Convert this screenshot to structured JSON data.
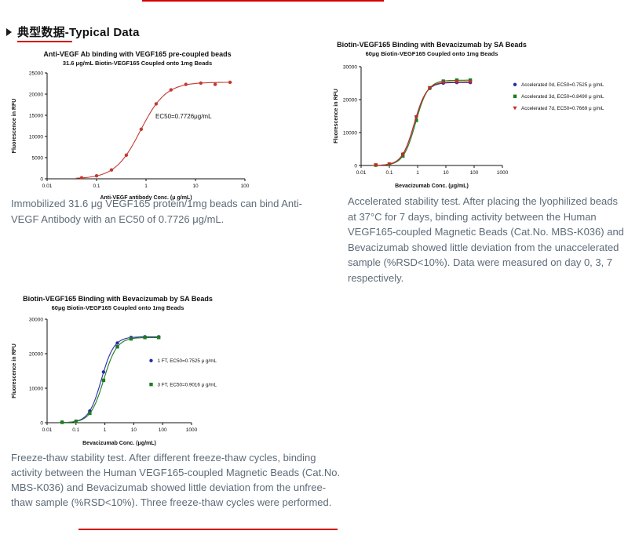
{
  "accent_color": "#d40000",
  "icons": {
    "header_bullet": "right-triangle-icon"
  },
  "header": {
    "title": "典型数据-Typical Data"
  },
  "captions": {
    "chart1": "Immobilized 31.6 μg VEGF165 protein/1mg beads can bind Anti-VEGF Antibody with an EC50 of 0.7726 μg/mL.",
    "chart2": "Accelerated stability test. After placing the lyophilized beads at 37°C for 7 days, binding activity between the Human VEGF165-coupled Magnetic Beads (Cat.No. MBS-K036) and Bevacizumab showed little deviation from the unaccelerated sample (%RSD<10%). Data were measured on day 0, 3, 7 respectively.",
    "chart3": "Freeze-thaw stability test. After different freeze-thaw cycles, binding activity between the Human VEGF165-coupled Magnetic Beads (Cat.No. MBS-K036) and Bevacizumab showed little deviation from the unfree-thaw sample (%RSD<10%). Three freeze-thaw cycles were performed."
  },
  "chart_data": [
    {
      "type": "scatter",
      "title": "Anti-VEGF Ab binding with VEGF165 pre-coupled beads",
      "subtitle": "31.6 μg/mL Biotin-VEGF165 Coupled onto 1mg Beads",
      "xlabel": "Anti-VEGF antibody Conc. (μ g/mL)",
      "ylabel": "Fluorescence in RFU",
      "x_scale": "log",
      "x_ticks": [
        0.01,
        0.1,
        1,
        10,
        100
      ],
      "y_ticks": [
        0,
        5000,
        10000,
        15000,
        20000,
        25000
      ],
      "xlim": [
        0.01,
        100
      ],
      "ylim": [
        0,
        25000
      ],
      "grid": false,
      "annotation": "EC50=0.7726μg/mL",
      "series": [
        {
          "name": "Anti-VEGF Ab",
          "color": "#c23a32",
          "marker": "circle",
          "ec50": 0.7726,
          "top": 22800,
          "hill": 1.7,
          "points": [
            [
              0.05,
              250
            ],
            [
              0.1,
              700
            ],
            [
              0.2,
              2100
            ],
            [
              0.4,
              5600
            ],
            [
              0.8,
              11700
            ],
            [
              1.6,
              17700
            ],
            [
              3.2,
              21000
            ],
            [
              6.4,
              22300
            ],
            [
              12.8,
              22600
            ],
            [
              25,
              22300
            ],
            [
              50,
              22800
            ]
          ]
        }
      ]
    },
    {
      "type": "scatter",
      "title": "Biotin-VEGF165 Binding with Bevacizumab by SA Beads",
      "subtitle": "60μg Biotin-VEGF165 Coupled onto 1mg Beads",
      "xlabel": "Bevacizumab Conc. (μg/mL)",
      "ylabel": "Fluorescence in RFU",
      "x_scale": "log",
      "x_ticks": [
        0.01,
        0.1,
        1,
        10,
        100,
        1000
      ],
      "y_ticks": [
        0,
        10000,
        20000,
        30000
      ],
      "xlim": [
        0.01,
        1000
      ],
      "ylim": [
        0,
        30000
      ],
      "grid": false,
      "legend_position": "right",
      "series": [
        {
          "name": "Accelerated 0d,  EC50=0.7525 μ g/mL",
          "color": "#2b2ba8",
          "marker": "circle",
          "ec50": 0.7525,
          "top": 25200,
          "hill": 2.0,
          "points": [
            [
              0.033,
              150
            ],
            [
              0.1,
              440
            ],
            [
              0.3,
              3460
            ],
            [
              0.9,
              14800
            ],
            [
              2.7,
              23400
            ],
            [
              8.1,
              25000
            ],
            [
              24.3,
              25200
            ],
            [
              73,
              25200
            ]
          ]
        },
        {
          "name": "Accelerated 3d,  EC50=0.8490 μ g/mL",
          "color": "#1e7d1e",
          "marker": "square",
          "ec50": 0.849,
          "top": 25900,
          "hill": 2.0,
          "points": [
            [
              0.033,
              130
            ],
            [
              0.1,
              360
            ],
            [
              0.3,
              2870
            ],
            [
              0.9,
              13700
            ],
            [
              2.7,
              23600
            ],
            [
              8.1,
              25600
            ],
            [
              24.3,
              25900
            ],
            [
              73,
              25900
            ]
          ]
        },
        {
          "name": "Accelerated 7d,  EC50=0.7669 μ g/mL",
          "color": "#cc2a1f",
          "marker": "triangle",
          "ec50": 0.7669,
          "top": 25400,
          "hill": 2.0,
          "points": [
            [
              0.033,
              140
            ],
            [
              0.1,
              430
            ],
            [
              0.3,
              3370
            ],
            [
              0.9,
              14700
            ],
            [
              2.7,
              23500
            ],
            [
              8.1,
              25200
            ],
            [
              24.3,
              25400
            ],
            [
              73,
              25400
            ]
          ]
        }
      ]
    },
    {
      "type": "scatter",
      "title": "Biotin-VEGF165 Binding with Bevacizumab by SA Beads",
      "subtitle": "60μg Biotin-VEGF165 Coupled onto 1mg Beads",
      "xlabel": "Bevacizumab Conc. (μg/mL)",
      "ylabel": "Fluorescence in RFU",
      "x_scale": "log",
      "x_ticks": [
        0.01,
        0.1,
        1,
        10,
        100,
        1000
      ],
      "y_ticks": [
        0,
        10000,
        20000,
        30000
      ],
      "xlim": [
        0.01,
        1000
      ],
      "ylim": [
        0,
        30000
      ],
      "grid": false,
      "legend_position": "inside-right",
      "series": [
        {
          "name": "1 FT,  EC50=0.7525 μ g/mL",
          "color": "#2b2ba8",
          "marker": "circle",
          "ec50": 0.7525,
          "top": 24900,
          "hill": 2.0,
          "points": [
            [
              0.033,
              150
            ],
            [
              0.1,
              430
            ],
            [
              0.3,
              3420
            ],
            [
              0.9,
              14700
            ],
            [
              2.7,
              23100
            ],
            [
              8.1,
              24700
            ],
            [
              24.3,
              24900
            ],
            [
              73,
              24900
            ]
          ]
        },
        {
          "name": "3 FT,  EC50=0.9016 μ g/mL",
          "color": "#1e7d1e",
          "marker": "square",
          "ec50": 0.9016,
          "top": 24700,
          "hill": 1.9,
          "points": [
            [
              0.033,
              120
            ],
            [
              0.1,
              370
            ],
            [
              0.3,
              2720
            ],
            [
              0.9,
              12300
            ],
            [
              2.7,
              22000
            ],
            [
              8.1,
              24300
            ],
            [
              24.3,
              24700
            ],
            [
              73,
              24700
            ]
          ]
        }
      ]
    }
  ]
}
